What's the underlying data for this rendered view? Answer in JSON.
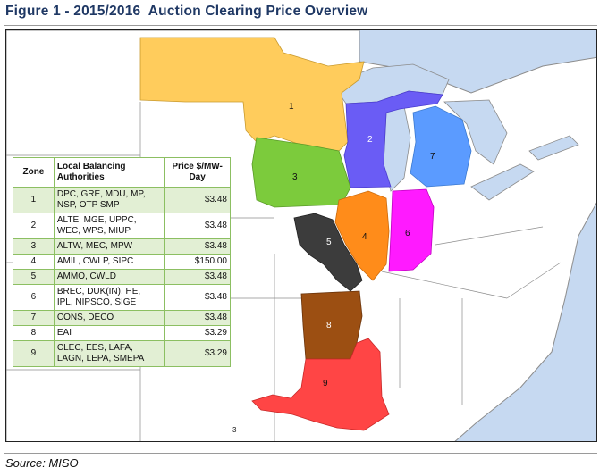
{
  "figure": {
    "title": "Figure 1 - 2015/2016  Auction Clearing Price Overview",
    "source": "Source: MISO"
  },
  "map": {
    "zone_labels": [
      "1",
      "2",
      "3",
      "4",
      "5",
      "6",
      "7",
      "8",
      "9"
    ],
    "footnote_mark": "3",
    "colors": {
      "water": "#c6d9f1",
      "land": "#ffffff",
      "border": "#8c8c8c",
      "zone1": "#ffcc5c",
      "zone2": "#6a5cf5",
      "zone3": "#7ccb3c",
      "zone4": "#ff8c1a",
      "zone5": "#3c3c3c",
      "zone6": "#ff1aff",
      "zone7": "#5b9bff",
      "zone8": "#9c4f12",
      "zone9": "#ff4545"
    }
  },
  "table": {
    "headers": {
      "zone": "Zone",
      "authorities": "Local Balancing Authorities",
      "price": "Price $/MW-Day"
    },
    "border_color": "#8cbf62",
    "shade_color": "#e2efd4",
    "rows": [
      {
        "zone": "1",
        "authorities": "DPC, GRE, MDU, MP,\nNSP, OTP SMP",
        "price": "$3.48"
      },
      {
        "zone": "2",
        "authorities": "ALTE, MGE, UPPC,\nWEC, WPS, MIUP",
        "price": "$3.48"
      },
      {
        "zone": "3",
        "authorities": "ALTW, MEC, MPW",
        "price": "$3.48"
      },
      {
        "zone": "4",
        "authorities": "AMIL, CWLP, SIPC",
        "price": "$150.00"
      },
      {
        "zone": "5",
        "authorities": "AMMO, CWLD",
        "price": "$3.48"
      },
      {
        "zone": "6",
        "authorities": "BREC, DUK(IN), HE,\nIPL, NIPSCO, SIGE",
        "price": "$3.48"
      },
      {
        "zone": "7",
        "authorities": "CONS, DECO",
        "price": "$3.48"
      },
      {
        "zone": "8",
        "authorities": "EAI",
        "price": "$3.29"
      },
      {
        "zone": "9",
        "authorities": "CLEC, EES, LAFA,\nLAGN, LEPA, SMEPA",
        "price": "$3.29"
      }
    ]
  }
}
